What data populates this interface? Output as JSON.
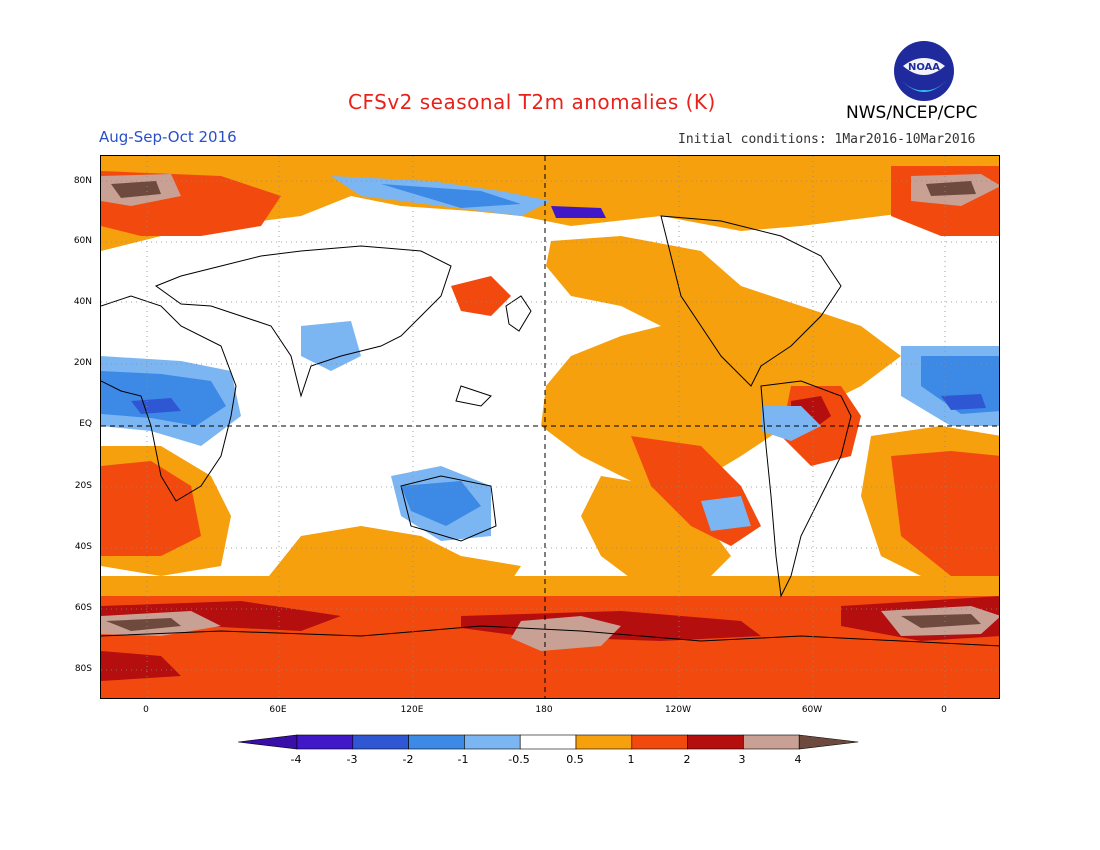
{
  "header": {
    "title": "CFSv2 seasonal T2m anomalies (K)",
    "agency": "NWS/NCEP/CPC",
    "season": "Aug-Sep-Oct 2016",
    "initial_conditions": "Initial conditions: 1Mar2016-10Mar2016",
    "logo_text": "NOAA"
  },
  "map": {
    "lat_labels": [
      "80N",
      "60N",
      "40N",
      "20N",
      "EQ",
      "20S",
      "40S",
      "60S",
      "80S"
    ],
    "lon_labels": [
      "0",
      "60E",
      "120E",
      "180",
      "120W",
      "60W",
      "0"
    ]
  },
  "colorbar": {
    "labels": [
      "-4",
      "-3",
      "-2",
      "-1",
      "-0.5",
      "0.5",
      "1",
      "2",
      "3",
      "4"
    ],
    "colors": [
      "#4018c8",
      "#2f57d4",
      "#3c8ae6",
      "#7cb6f2",
      "#ffffff",
      "#f5a00c",
      "#f24a0e",
      "#b40e0e",
      "#c8a094",
      "#6e4a3e"
    ],
    "low_end_color": "#3a0ea8",
    "high_end_color": "#6e4a3e"
  }
}
